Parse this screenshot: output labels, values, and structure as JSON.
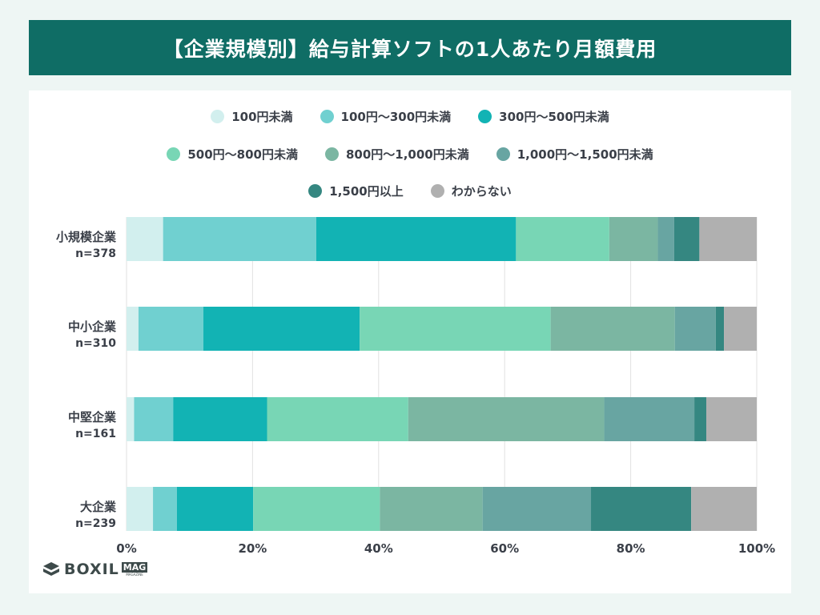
{
  "title": "【企業規模別】給与計算ソフトの1人あたり月額費用",
  "logo": {
    "word": "BOXIL",
    "mag": "MAG",
    "mag_sub": "MAGAZINE"
  },
  "chart_data": {
    "type": "bar",
    "orientation": "horizontal",
    "stacked": true,
    "categories": [
      {
        "label": "小規模企業",
        "n": "n=378"
      },
      {
        "label": "中小企業",
        "n": "n=310"
      },
      {
        "label": "中堅企業",
        "n": "n=161"
      },
      {
        "label": "大企業",
        "n": "n=239"
      }
    ],
    "series": [
      {
        "name": "100円未満",
        "color": "#d2efee",
        "values": [
          5.8,
          1.9,
          1.2,
          4.2
        ]
      },
      {
        "name": "100円～300円未満",
        "color": "#70d0d0",
        "values": [
          24.3,
          10.3,
          6.2,
          3.8
        ]
      },
      {
        "name": "300円～500円未満",
        "color": "#12b3b4",
        "values": [
          31.7,
          24.8,
          14.9,
          12.1
        ]
      },
      {
        "name": "500円～800円未満",
        "color": "#78d6b5",
        "values": [
          14.8,
          30.3,
          22.4,
          20.1
        ]
      },
      {
        "name": "800円～1,000円未満",
        "color": "#7bb6a2",
        "values": [
          7.7,
          19.7,
          31.1,
          16.3
        ]
      },
      {
        "name": "1,000円～1,500円未満",
        "color": "#68a5a2",
        "values": [
          2.6,
          6.5,
          14.3,
          17.2
        ]
      },
      {
        "name": "1,500円以上",
        "color": "#358781",
        "values": [
          4.0,
          1.3,
          1.9,
          15.9
        ]
      },
      {
        "name": "わからない",
        "color": "#b0b0b0",
        "values": [
          9.1,
          5.2,
          8.0,
          10.4
        ]
      }
    ],
    "xaxis": {
      "ticks": [
        "0%",
        "20%",
        "40%",
        "60%",
        "80%",
        "100%"
      ],
      "range": [
        0,
        100
      ]
    },
    "grid": true,
    "legend_position": "top"
  }
}
